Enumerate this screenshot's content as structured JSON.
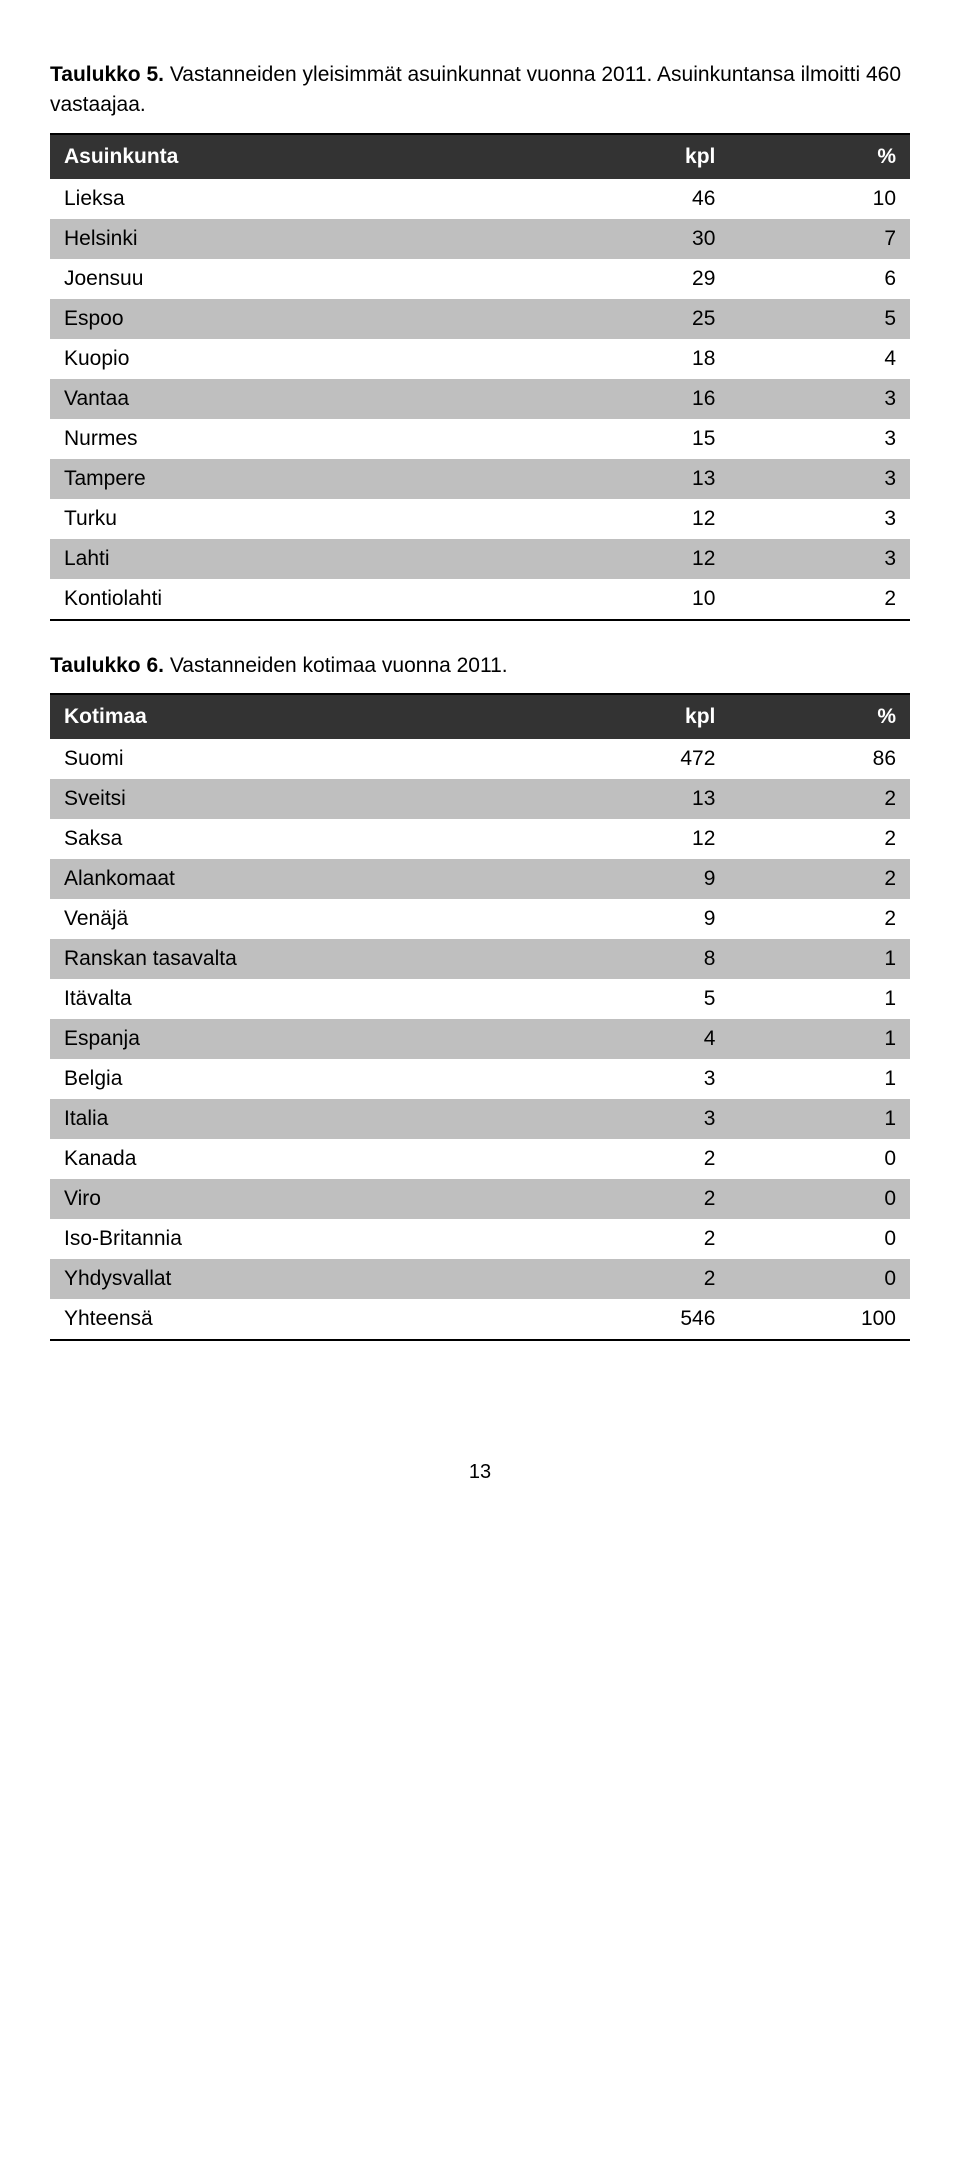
{
  "table1": {
    "caption_prefix": "Taulukko 5.",
    "caption_rest": " Vastanneiden yleisimmät asuinkunnat vuonna 2011. Asuinkuntansa ilmoitti 460 vastaajaa.",
    "headers": {
      "c0": "Asuinkunta",
      "c1": "kpl",
      "c2": "%"
    },
    "header_bg": "#333333",
    "header_fg": "#ffffff",
    "stripe_odd": "#ffffff",
    "stripe_even": "#bfbfbf",
    "col_widths": [
      "58%",
      "21%",
      "21%"
    ],
    "rows": [
      {
        "label": "Lieksa",
        "kpl": "46",
        "pct": "10"
      },
      {
        "label": "Helsinki",
        "kpl": "30",
        "pct": "7"
      },
      {
        "label": "Joensuu",
        "kpl": "29",
        "pct": "6"
      },
      {
        "label": "Espoo",
        "kpl": "25",
        "pct": "5"
      },
      {
        "label": "Kuopio",
        "kpl": "18",
        "pct": "4"
      },
      {
        "label": "Vantaa",
        "kpl": "16",
        "pct": "3"
      },
      {
        "label": "Nurmes",
        "kpl": "15",
        "pct": "3"
      },
      {
        "label": "Tampere",
        "kpl": "13",
        "pct": "3"
      },
      {
        "label": "Turku",
        "kpl": "12",
        "pct": "3"
      },
      {
        "label": "Lahti",
        "kpl": "12",
        "pct": "3"
      },
      {
        "label": "Kontiolahti",
        "kpl": "10",
        "pct": "2"
      }
    ]
  },
  "table2": {
    "caption_prefix": "Taulukko 6.",
    "caption_rest": " Vastanneiden kotimaa vuonna 2011.",
    "headers": {
      "c0": "Kotimaa",
      "c1": "kpl",
      "c2": "%"
    },
    "header_bg": "#333333",
    "header_fg": "#ffffff",
    "stripe_odd": "#ffffff",
    "stripe_even": "#bfbfbf",
    "col_widths": [
      "58%",
      "21%",
      "21%"
    ],
    "rows": [
      {
        "label": "Suomi",
        "kpl": "472",
        "pct": "86"
      },
      {
        "label": "Sveitsi",
        "kpl": "13",
        "pct": "2"
      },
      {
        "label": "Saksa",
        "kpl": "12",
        "pct": "2"
      },
      {
        "label": "Alankomaat",
        "kpl": "9",
        "pct": "2"
      },
      {
        "label": "Venäjä",
        "kpl": "9",
        "pct": "2"
      },
      {
        "label": "Ranskan tasavalta",
        "kpl": "8",
        "pct": "1"
      },
      {
        "label": "Itävalta",
        "kpl": "5",
        "pct": "1"
      },
      {
        "label": "Espanja",
        "kpl": "4",
        "pct": "1"
      },
      {
        "label": "Belgia",
        "kpl": "3",
        "pct": "1"
      },
      {
        "label": "Italia",
        "kpl": "3",
        "pct": "1"
      },
      {
        "label": "Kanada",
        "kpl": "2",
        "pct": "0"
      },
      {
        "label": "Viro",
        "kpl": "2",
        "pct": "0"
      },
      {
        "label": "Iso-Britannia",
        "kpl": "2",
        "pct": "0"
      },
      {
        "label": "Yhdysvallat",
        "kpl": "2",
        "pct": "0"
      },
      {
        "label": "Yhteensä",
        "kpl": "546",
        "pct": "100"
      }
    ]
  },
  "page_number": "13"
}
